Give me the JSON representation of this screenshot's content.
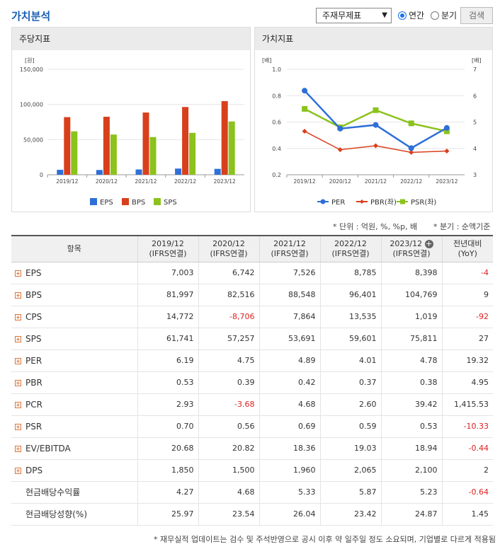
{
  "header": {
    "title": "가치분석",
    "select_value": "주재무제표",
    "radio_annual": "연간",
    "radio_quarter": "분기",
    "search_label": "검색"
  },
  "left_chart": {
    "panel_title": "주당지표",
    "unit": "[원]",
    "chart_data": {
      "type": "bar",
      "categories": [
        "2019/12",
        "2020/12",
        "2021/12",
        "2022/12",
        "2023/12"
      ],
      "series": [
        {
          "name": "EPS",
          "values": [
            7003,
            6742,
            7526,
            8785,
            8398
          ],
          "color": "#2e6fd8"
        },
        {
          "name": "BPS",
          "values": [
            81997,
            82516,
            88548,
            96401,
            104769
          ],
          "color": "#d8401c"
        },
        {
          "name": "SPS",
          "values": [
            61741,
            57257,
            53691,
            59601,
            75811
          ],
          "color": "#8cc21c"
        }
      ],
      "ylim": [
        0,
        150000
      ],
      "yticks": [
        "0",
        "50,000",
        "100,000",
        "150,000"
      ],
      "grid": true,
      "legend": "bottom"
    }
  },
  "right_chart": {
    "panel_title": "가치지표",
    "unit_left": "[배]",
    "unit_right": "[배]",
    "chart_data": {
      "type": "line",
      "categories": [
        "2019/12",
        "2020/12",
        "2021/12",
        "2022/12",
        "2023/12"
      ],
      "series": [
        {
          "name": "PER",
          "values": [
            6.19,
            4.75,
            4.89,
            4.01,
            4.78
          ],
          "axis": "right",
          "color": "#2e6fd8"
        },
        {
          "name": "PBR(좌)",
          "values": [
            0.53,
            0.39,
            0.42,
            0.37,
            0.38
          ],
          "axis": "left",
          "color": "#d8401c"
        },
        {
          "name": "PSR(좌)",
          "values": [
            0.7,
            0.56,
            0.69,
            0.59,
            0.53
          ],
          "axis": "left",
          "color": "#8cc21c"
        }
      ],
      "ylim_left": [
        0.2,
        1.0
      ],
      "yticks_left": [
        "0.2",
        "0.4",
        "0.6",
        "0.8",
        "1.0"
      ],
      "ylim_right": [
        3,
        7
      ],
      "yticks_right": [
        "3",
        "4",
        "5",
        "6",
        "7"
      ],
      "grid": true,
      "legend": "bottom"
    }
  },
  "notes": {
    "unit": "* 단위 : 억원, %, %p, 배",
    "quarter": "* 분기 : 순액기준",
    "footer": "* 재무실적 업데이트는 검수 및 주석반영으로 공시 이후 약 일주일 정도 소요되며, 기업별로 다르게 적용됨"
  },
  "table": {
    "item_header": "항목",
    "columns": [
      {
        "period": "2019/12",
        "basis": "(IFRS연결)"
      },
      {
        "period": "2020/12",
        "basis": "(IFRS연결)"
      },
      {
        "period": "2021/12",
        "basis": "(IFRS연결)"
      },
      {
        "period": "2022/12",
        "basis": "(IFRS연결)"
      },
      {
        "period": "2023/12",
        "basis": "(IFRS연결)"
      }
    ],
    "yoy_header": "전년대비",
    "yoy_sub": "(YoY)",
    "rows": [
      {
        "name": "EPS",
        "expand": true,
        "values": [
          "7,003",
          "6,742",
          "7,526",
          "8,785",
          "8,398"
        ],
        "yoy": "-4"
      },
      {
        "name": "BPS",
        "expand": true,
        "values": [
          "81,997",
          "82,516",
          "88,548",
          "96,401",
          "104,769"
        ],
        "yoy": "9"
      },
      {
        "name": "CPS",
        "expand": true,
        "values": [
          "14,772",
          "-8,706",
          "7,864",
          "13,535",
          "1,019"
        ],
        "yoy": "-92"
      },
      {
        "name": "SPS",
        "expand": true,
        "values": [
          "61,741",
          "57,257",
          "53,691",
          "59,601",
          "75,811"
        ],
        "yoy": "27"
      },
      {
        "name": "PER",
        "expand": true,
        "values": [
          "6.19",
          "4.75",
          "4.89",
          "4.01",
          "4.78"
        ],
        "yoy": "19.32"
      },
      {
        "name": "PBR",
        "expand": true,
        "values": [
          "0.53",
          "0.39",
          "0.42",
          "0.37",
          "0.38"
        ],
        "yoy": "4.95"
      },
      {
        "name": "PCR",
        "expand": true,
        "values": [
          "2.93",
          "-3.68",
          "4.68",
          "2.60",
          "39.42"
        ],
        "yoy": "1,415.53"
      },
      {
        "name": "PSR",
        "expand": true,
        "values": [
          "0.70",
          "0.56",
          "0.69",
          "0.59",
          "0.53"
        ],
        "yoy": "-10.33"
      },
      {
        "name": "EV/EBITDA",
        "expand": true,
        "values": [
          "20.68",
          "20.82",
          "18.36",
          "19.03",
          "18.94"
        ],
        "yoy": "-0.44"
      },
      {
        "name": "DPS",
        "expand": true,
        "values": [
          "1,850",
          "1,500",
          "1,960",
          "2,065",
          "2,100"
        ],
        "yoy": "2"
      },
      {
        "name": "현금배당수익률",
        "expand": false,
        "values": [
          "4.27",
          "4.68",
          "5.33",
          "5.87",
          "5.23"
        ],
        "yoy": "-0.64"
      },
      {
        "name": "현금배당성향(%)",
        "expand": false,
        "values": [
          "25.97",
          "23.54",
          "26.04",
          "23.42",
          "24.87"
        ],
        "yoy": "1.45"
      }
    ]
  }
}
